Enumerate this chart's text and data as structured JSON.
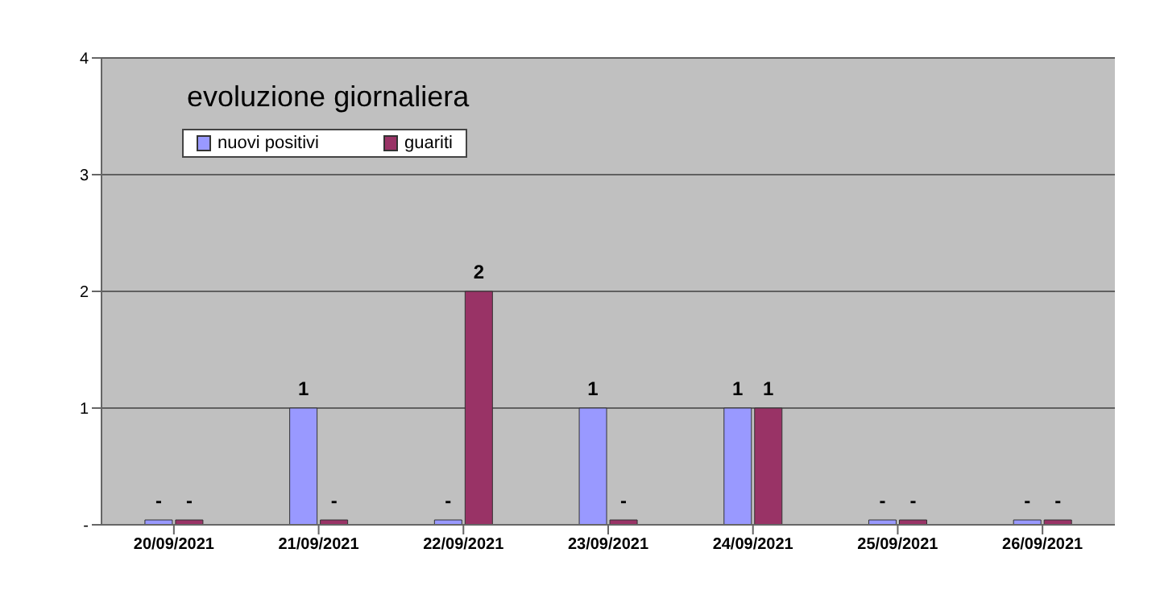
{
  "chart_data": {
    "type": "bar",
    "title": "evoluzione giornaliera",
    "categories": [
      "20/09/2021",
      "21/09/2021",
      "22/09/2021",
      "23/09/2021",
      "24/09/2021",
      "25/09/2021",
      "26/09/2021"
    ],
    "series": [
      {
        "name": "nuovi positivi",
        "color": "#9999ff",
        "values": [
          0,
          1,
          0,
          1,
          1,
          0,
          0
        ],
        "value_labels": [
          "-",
          "1",
          "-",
          "1",
          "1",
          "-",
          "-"
        ]
      },
      {
        "name": "guariti",
        "color": "#993366",
        "values": [
          0,
          0,
          2,
          0,
          1,
          0,
          0
        ],
        "value_labels": [
          "-",
          "-",
          "2",
          "-",
          "1",
          "-",
          "-"
        ]
      }
    ],
    "ylim": [
      0,
      4
    ],
    "yticks": [
      {
        "value": 0,
        "label": "-"
      },
      1,
      2,
      3,
      4
    ],
    "grid": "y",
    "legend": "top left"
  }
}
